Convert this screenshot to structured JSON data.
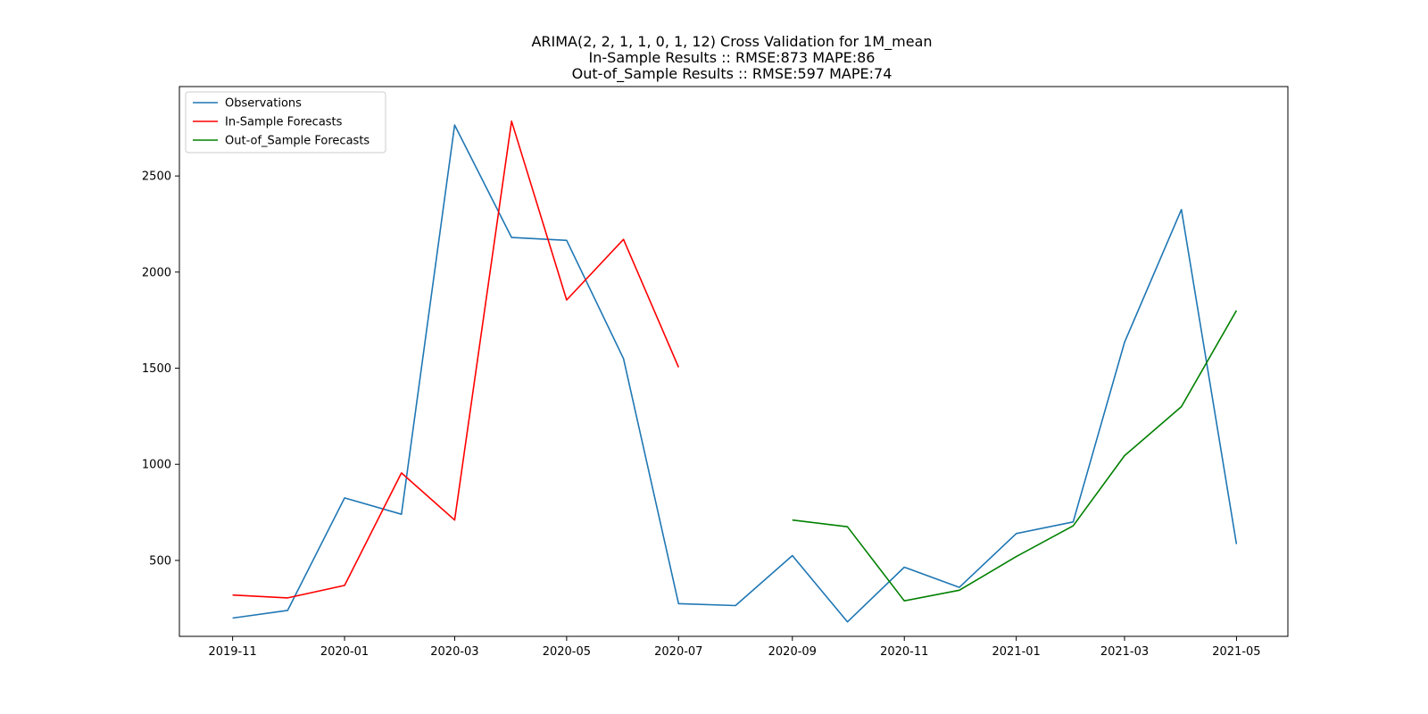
{
  "chart_data": {
    "type": "line",
    "title_lines": [
      "ARIMA(2, 2, 1, 1, 0, 1, 12) Cross Validation for 1M_mean",
      "In-Sample Results :: RMSE:873 MAPE:86",
      "Out-of_Sample Results :: RMSE:597 MAPE:74"
    ],
    "xlabel": "",
    "ylabel": "",
    "x_tick_labels": [
      "2019-11",
      "2020-01",
      "2020-03",
      "2020-05",
      "2020-07",
      "2020-09",
      "2020-11",
      "2021-01",
      "2021-03",
      "2021-05"
    ],
    "y_tick_labels": [
      "500",
      "1000",
      "1500",
      "2000",
      "2500"
    ],
    "y_ticks": [
      500,
      1000,
      1500,
      2000,
      2500
    ],
    "xlim": [
      "2019-10-03",
      "2021-05-29"
    ],
    "ylim": [
      105,
      2965
    ],
    "grid": false,
    "legend_position": "upper-left",
    "series": [
      {
        "name": "Observations",
        "color": "#1f77b4",
        "x": [
          "2019-11-01",
          "2019-12-01",
          "2020-01-01",
          "2020-02-01",
          "2020-03-01",
          "2020-04-01",
          "2020-05-01",
          "2020-06-01",
          "2020-07-01",
          "2020-08-01",
          "2020-09-01",
          "2020-10-01",
          "2020-11-01",
          "2020-12-01",
          "2021-01-01",
          "2021-02-01",
          "2021-03-01",
          "2021-04-01",
          "2021-05-01"
        ],
        "y": [
          200,
          240,
          825,
          740,
          2765,
          2180,
          2165,
          1550,
          275,
          265,
          525,
          180,
          465,
          360,
          640,
          700,
          1635,
          2325,
          585
        ]
      },
      {
        "name": "In-Sample Forecasts",
        "color": "#ff0000",
        "x": [
          "2019-11-01",
          "2019-12-01",
          "2020-01-01",
          "2020-02-01",
          "2020-03-01",
          "2020-04-01",
          "2020-05-01",
          "2020-06-01",
          "2020-07-01"
        ],
        "y": [
          320,
          305,
          370,
          955,
          710,
          2785,
          1855,
          2170,
          1505
        ]
      },
      {
        "name": "Out-of_Sample Forecasts",
        "color": "#008000",
        "x": [
          "2020-09-01",
          "2020-10-01",
          "2020-11-01",
          "2020-12-01",
          "2021-01-01",
          "2021-02-01",
          "2021-03-01",
          "2021-04-01",
          "2021-05-01"
        ],
        "y": [
          710,
          675,
          290,
          345,
          520,
          680,
          1045,
          1300,
          1800
        ]
      }
    ]
  }
}
